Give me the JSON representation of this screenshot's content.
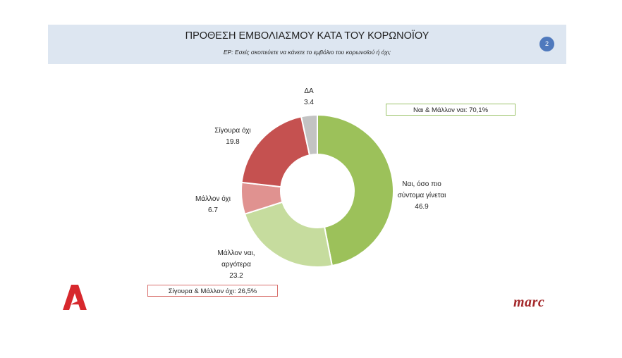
{
  "header": {
    "title": "ΠΡΟΘΕΣΗ ΕΜΒΟΛΙΑΣΜΟΥ ΚΑΤΑ ΤΟΥ ΚΟΡΩΝΟΪΟΥ",
    "subtitle": "ΕΡ: Εσείς σκοπεύετε να κάνετε το εμβόλιο του κορωνοϊού ή όχι;",
    "page_number": "2"
  },
  "chart_data": {
    "type": "pie",
    "variant": "donut",
    "start_angle_deg": 0,
    "direction": "clockwise",
    "series": [
      {
        "name": "Ναι, όσο πιο σύντομα γίνεται",
        "lines": [
          "Ναι, όσο πιο",
          "σύντομα γίνεται"
        ],
        "value": 46.9,
        "value_label": "46.9",
        "color": "#9cc15a"
      },
      {
        "name": "Μάλλον ναι, αργότερα",
        "lines": [
          "Μάλλον ναι,",
          "αργότερα"
        ],
        "value": 23.2,
        "value_label": "23.2",
        "color": "#c6dc9e"
      },
      {
        "name": "Μάλλον όχι",
        "lines": [
          "Μάλλον όχι"
        ],
        "value": 6.7,
        "value_label": "6.7",
        "color": "#e09290"
      },
      {
        "name": "Σίγουρα όχι",
        "lines": [
          "Σίγουρα όχι"
        ],
        "value": 19.8,
        "value_label": "19.8",
        "color": "#c55150"
      },
      {
        "name": "ΔΑ",
        "lines": [
          "ΔΑ"
        ],
        "value": 3.4,
        "value_label": "3.4",
        "color": "#c3c3c3"
      }
    ],
    "annotations": {
      "positive_total": "Ναι & Μάλλον ναι: 70,1%",
      "negative_total": "Σίγουρα & Μάλλον όχι: 26,5%"
    }
  },
  "logos": {
    "left": {
      "text": "A",
      "color": "#d7282d",
      "icon": "alpha-tv-logo"
    },
    "right": {
      "text": "marc",
      "color": "#a3282a",
      "icon": "marc-logo"
    }
  }
}
